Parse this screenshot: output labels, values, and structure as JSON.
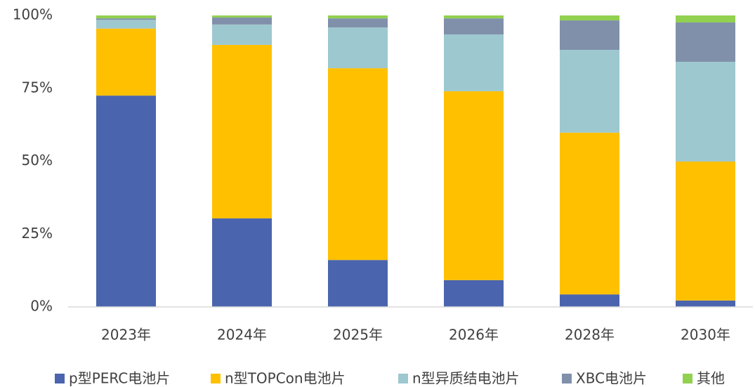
{
  "chart_data": {
    "type": "stacked_bar",
    "categories": [
      "2023年",
      "2024年",
      "2025年",
      "2026年",
      "2028年",
      "2030年"
    ],
    "series": [
      {
        "name": "p型PERC电池片",
        "color": "#4a65ad",
        "values": [
          72.5,
          30.4,
          16.1,
          9.2,
          4.3,
          2.2
        ]
      },
      {
        "name": "n型TOPCon电池片",
        "color": "#ffc000",
        "values": [
          23,
          59.5,
          65.8,
          64.8,
          55.5,
          47.7
        ]
      },
      {
        "name": "n型异质结电池片",
        "color": "#9dc8cf",
        "values": [
          3,
          7,
          14,
          19.5,
          28.4,
          34.2
        ]
      },
      {
        "name": "XBC电池片",
        "color": "#8090aa",
        "values": [
          0.5,
          2.4,
          3.1,
          5.5,
          10.1,
          13.5
        ]
      },
      {
        "name": "其他",
        "color": "#92d050",
        "values": [
          1,
          0.7,
          1,
          1,
          1.7,
          2.4
        ]
      }
    ],
    "ylim": [
      0,
      100
    ],
    "yticks": [
      {
        "value": 0,
        "label": "0%"
      },
      {
        "value": 25,
        "label": "25%"
      },
      {
        "value": 50,
        "label": "50%"
      },
      {
        "value": 75,
        "label": "75%"
      },
      {
        "value": 100,
        "label": "100%"
      }
    ],
    "legend": "bottom"
  }
}
